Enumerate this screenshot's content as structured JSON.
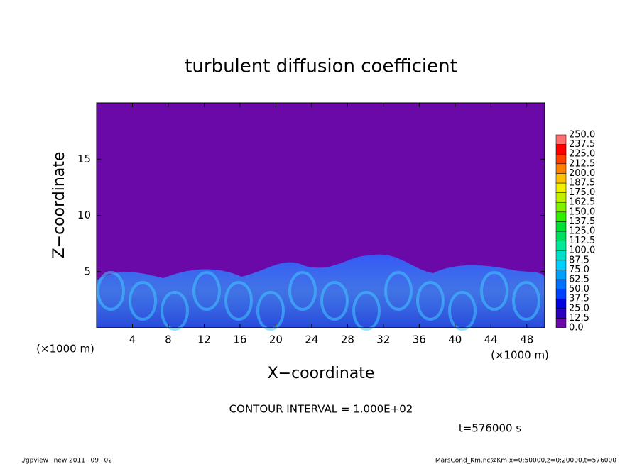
{
  "chart_data": {
    "type": "contour",
    "title": "turbulent diffusion coefficient",
    "x_label": "X−coordinate",
    "y_label": "Z−coordinate",
    "x_unit": "(×1000 m)",
    "y_unit": "(×1000 m)",
    "xlim": [
      0,
      50
    ],
    "ylim": [
      0,
      20
    ],
    "xticks": [
      4,
      8,
      12,
      16,
      20,
      24,
      28,
      32,
      36,
      40,
      44,
      48
    ],
    "yticks": [
      5,
      10,
      15
    ],
    "colorbar": {
      "levels": [
        {
          "value": 0,
          "label": "0.0"
        },
        {
          "value": 12.5,
          "label": "12.5"
        },
        {
          "value": 25,
          "label": "25.0"
        },
        {
          "value": 37.5,
          "label": "37.5"
        },
        {
          "value": 50,
          "label": "50.0"
        },
        {
          "value": 62.5,
          "label": "62.5"
        },
        {
          "value": 75,
          "label": "75.0"
        },
        {
          "value": 87.5,
          "label": "87.5"
        },
        {
          "value": 100,
          "label": "100.0"
        },
        {
          "value": 112.5,
          "label": "112.5"
        },
        {
          "value": 125,
          "label": "125.0"
        },
        {
          "value": 137.5,
          "label": "137.5"
        },
        {
          "value": 150,
          "label": "150.0"
        },
        {
          "value": 162.5,
          "label": "162.5"
        },
        {
          "value": 175,
          "label": "175.0"
        },
        {
          "value": 187.5,
          "label": "187.5"
        },
        {
          "value": 200,
          "label": "200.0"
        },
        {
          "value": 212.5,
          "label": "212.5"
        },
        {
          "value": 225,
          "label": "225.0"
        },
        {
          "value": 237.5,
          "label": "237.5"
        },
        {
          "value": 250,
          "label": "250.0"
        }
      ],
      "colors": [
        "#6a08a8",
        "#2a00c0",
        "#0000e0",
        "#0040ff",
        "#0070ff",
        "#00a0ff",
        "#00d0ff",
        "#00e0c8",
        "#00e898",
        "#00e060",
        "#00e030",
        "#30f000",
        "#80f000",
        "#c0f000",
        "#f0f000",
        "#ffc000",
        "#ff8000",
        "#ff4000",
        "#ff0000",
        "#ff7070"
      ]
    },
    "contour_interval": "CONTOUR INTERVAL = 1.000E+02",
    "time": "t=576000 s",
    "footer_left": "./gpview−new  2011−09−02",
    "footer_right": "MarsCond_Km.nc@Km,x=0:50000,z=0:20000,t=576000"
  }
}
